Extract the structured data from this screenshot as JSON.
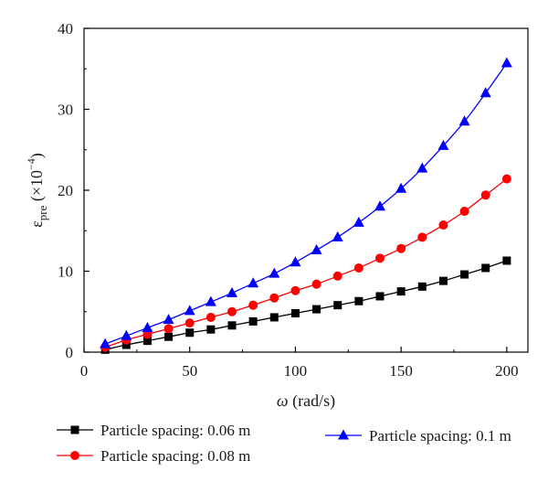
{
  "chart_data": {
    "type": "line",
    "xlabel": "ω (rad/s)",
    "ylabel": "εpre (×10−4)",
    "ylabel_parts": {
      "symbol": "ε",
      "subscript": "pre",
      "unit_open": " (×10",
      "exponent": "−4",
      "unit_close": ")"
    },
    "xlabel_parts": {
      "symbol": "ω",
      "unit": " (rad/s)"
    },
    "xlim": [
      0,
      210
    ],
    "ylim": [
      0,
      40
    ],
    "x_ticks": [
      0,
      50,
      100,
      150,
      200
    ],
    "y_ticks": [
      0,
      10,
      20,
      30,
      40
    ],
    "grid": false,
    "legend_position": "below",
    "x": [
      10,
      20,
      30,
      40,
      50,
      60,
      70,
      80,
      90,
      100,
      110,
      120,
      130,
      140,
      150,
      160,
      170,
      180,
      190,
      200
    ],
    "series": [
      {
        "name": "Particle spacing: 0.06 m",
        "color": "#000000",
        "marker": "square",
        "values": [
          0.3,
          0.9,
          1.4,
          1.9,
          2.4,
          2.8,
          3.3,
          3.8,
          4.3,
          4.8,
          5.3,
          5.8,
          6.3,
          6.9,
          7.5,
          8.1,
          8.8,
          9.6,
          10.4,
          11.3
        ]
      },
      {
        "name": "Particle spacing: 0.08 m",
        "color": "#ff0000",
        "marker": "circle",
        "values": [
          0.6,
          1.5,
          2.2,
          2.9,
          3.6,
          4.3,
          5.0,
          5.8,
          6.7,
          7.6,
          8.4,
          9.4,
          10.4,
          11.6,
          12.8,
          14.2,
          15.7,
          17.4,
          19.4,
          21.4
        ]
      },
      {
        "name": "Particle spacing: 0.1 m",
        "color": "#0000ff",
        "marker": "triangle",
        "values": [
          1.0,
          2.0,
          3.0,
          4.0,
          5.1,
          6.2,
          7.3,
          8.5,
          9.7,
          11.1,
          12.6,
          14.2,
          16.0,
          18.0,
          20.2,
          22.7,
          25.5,
          28.5,
          32.0,
          35.7
        ]
      }
    ]
  }
}
